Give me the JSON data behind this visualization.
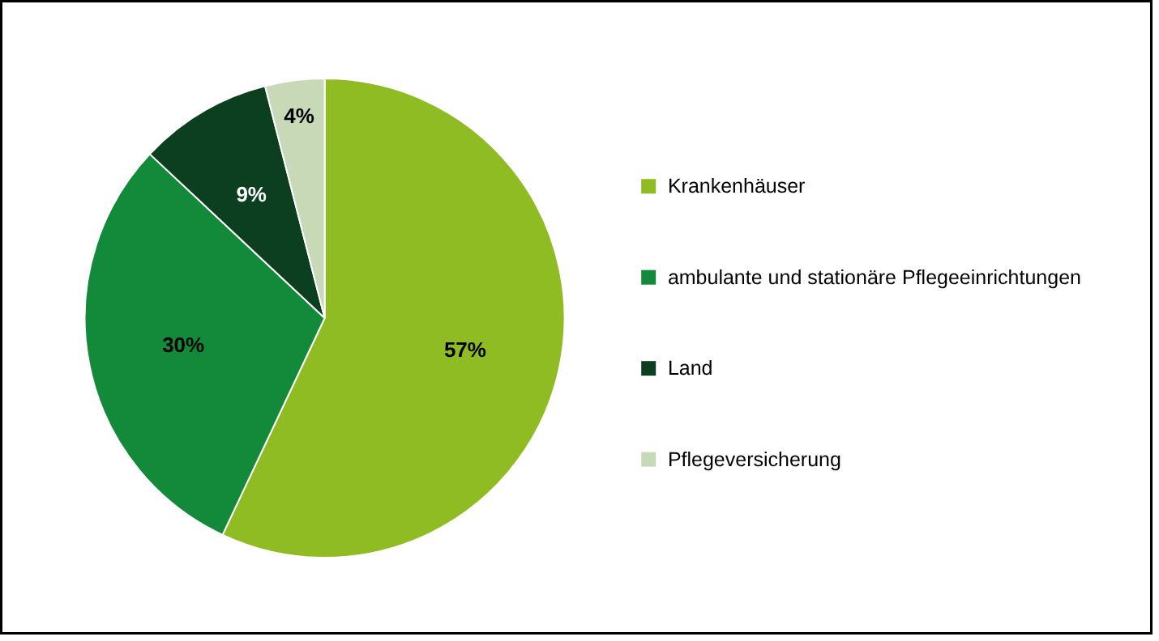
{
  "chart_data": {
    "type": "pie",
    "categories": [
      "Krankenhäuser",
      "ambulante und stationäre Pflegeeinrichtungen",
      "Land",
      "Pflegeversicherung"
    ],
    "values": [
      57,
      30,
      9,
      4
    ],
    "colors": [
      "#8fbc22",
      "#128a3a",
      "#0c3f1f",
      "#c8d9b8"
    ],
    "value_labels": [
      "57%",
      "30%",
      "9%",
      "4%"
    ],
    "legend": "right"
  }
}
